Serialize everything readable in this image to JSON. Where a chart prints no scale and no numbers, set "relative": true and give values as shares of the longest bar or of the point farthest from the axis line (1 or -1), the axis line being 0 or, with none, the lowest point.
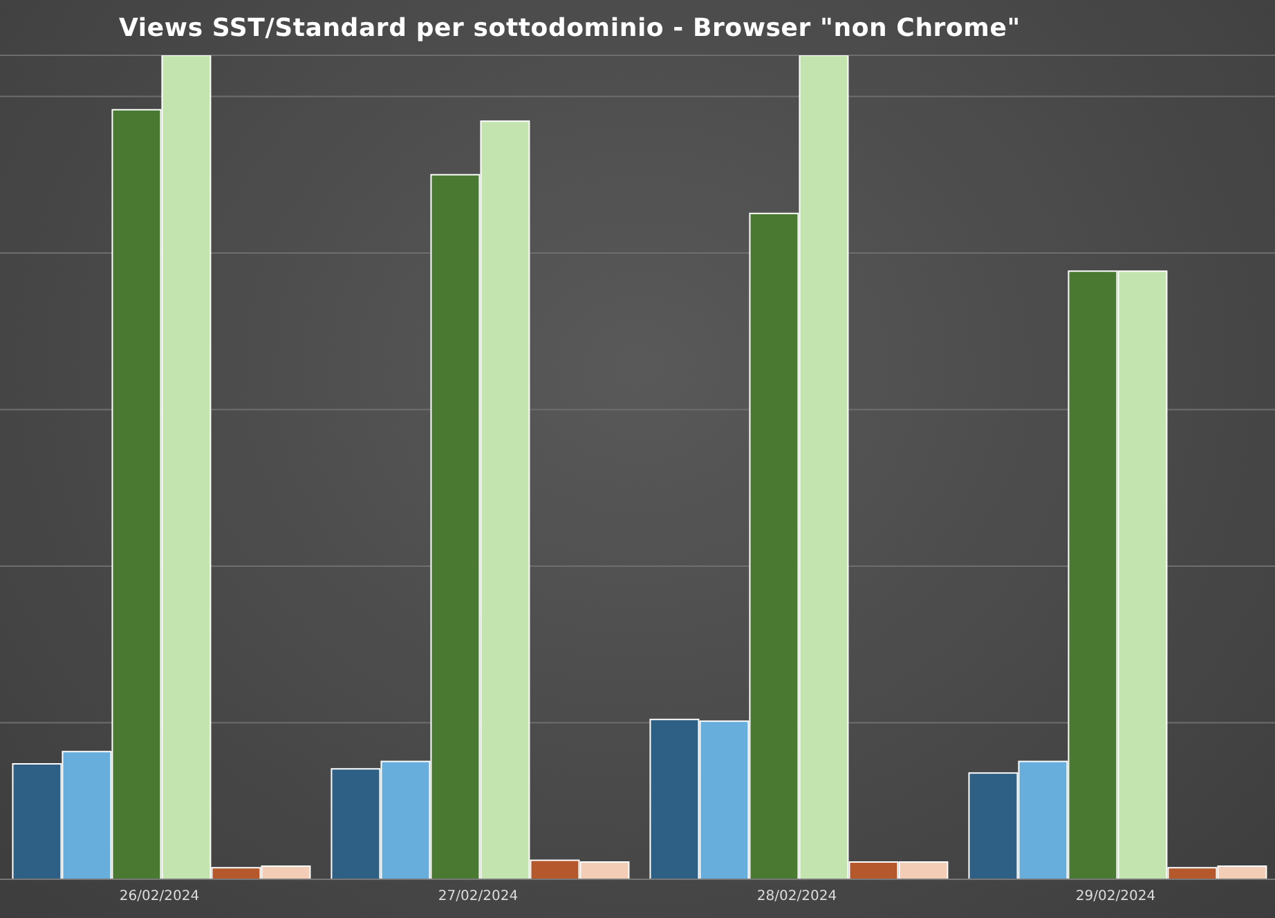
{
  "chart_data": {
    "type": "bar",
    "title": "Views SST/Standard per sottodominio - Browser \"non Chrome\"",
    "relative": true,
    "grid": "y",
    "categories": [
      "26/02/2024",
      "27/02/2024",
      "28/02/2024",
      "29/02/2024"
    ],
    "series": [
      {
        "color": "#2e5f85",
        "values": [
          0.14,
          0.134,
          0.194,
          0.129
        ]
      },
      {
        "color": "#68aedc",
        "values": [
          0.155,
          0.143,
          0.192,
          0.143
        ]
      },
      {
        "color": "#4a7a32",
        "values": [
          0.934,
          0.855,
          0.808,
          0.738
        ]
      },
      {
        "color": "#c3e4ae",
        "values": [
          1,
          0.92,
          1,
          0.738
        ]
      },
      {
        "color": "#b5582b",
        "values": [
          0.014,
          0.023,
          0.021,
          0.014
        ]
      },
      {
        "color": "#f3cdb5",
        "values": [
          0.016,
          0.021,
          0.021,
          0.016
        ]
      }
    ]
  }
}
